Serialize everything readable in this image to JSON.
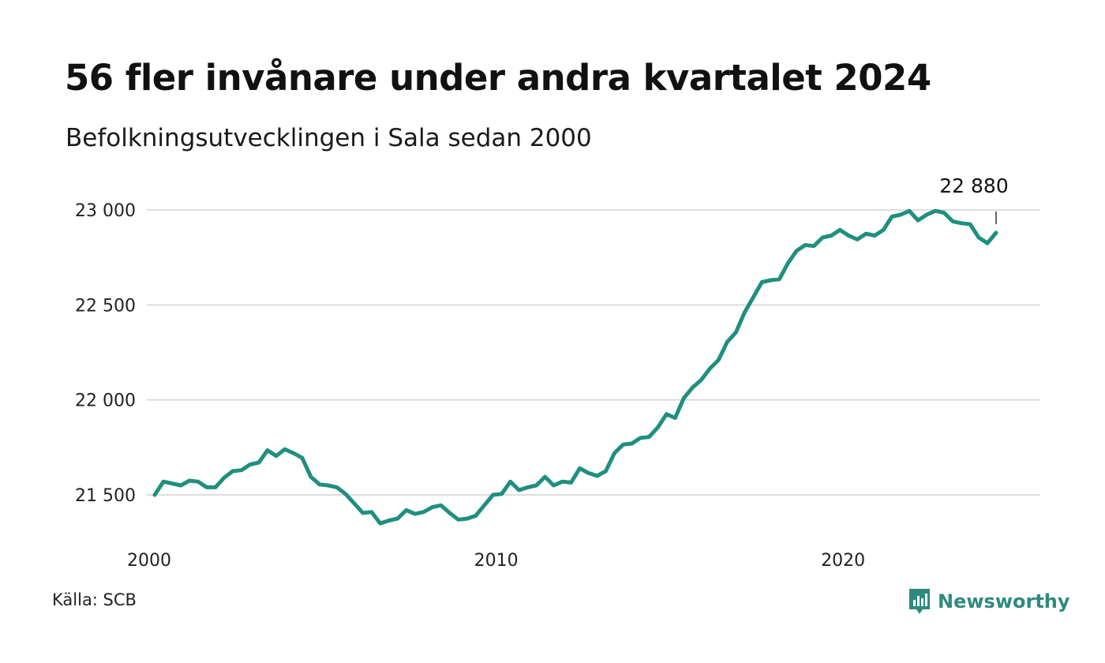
{
  "header": {
    "title": "56 fler invånare under andra kvartalet 2024",
    "subtitle": "Befolkningsutvecklingen i Sala sedan 2000"
  },
  "footer": {
    "source": "Källa: SCB",
    "brand": "Newsworthy",
    "brand_icon": "bar-chart-speech-bubble-icon"
  },
  "colors": {
    "line": "#1f8f7e",
    "grid": "#dddddd",
    "brand": "#2f8a7d"
  },
  "chart_data": {
    "type": "line",
    "title": "",
    "xlabel": "",
    "ylabel": "",
    "ylim": [
      21250,
      23100
    ],
    "xlim": [
      2000.0,
      2024.75
    ],
    "grid": "horizontal",
    "y_ticks": [
      21500,
      22000,
      22500,
      23000
    ],
    "y_tick_labels": [
      "21 500",
      "22 000",
      "22 500",
      "23 000"
    ],
    "x_ticks": [
      2000,
      2010,
      2020
    ],
    "x_tick_labels": [
      "2000",
      "2010",
      "2020"
    ],
    "annotation": {
      "label": "22 880",
      "x": 2024.25,
      "y": 22880
    },
    "series": [
      {
        "x_start": 2000.0,
        "x_step": 0.25,
        "values": [
          21500,
          21570,
          21560,
          21550,
          21575,
          21570,
          21540,
          21540,
          21590,
          21625,
          21630,
          21660,
          21670,
          21735,
          21705,
          21740,
          21720,
          21695,
          21595,
          21555,
          21550,
          21540,
          21505,
          21455,
          21405,
          21410,
          21350,
          21365,
          21375,
          21420,
          21400,
          21410,
          21435,
          21445,
          21405,
          21370,
          21375,
          21390,
          21445,
          21500,
          21505,
          21570,
          21525,
          21540,
          21550,
          21595,
          21550,
          21570,
          21565,
          21640,
          21615,
          21600,
          21625,
          21720,
          21765,
          21770,
          21800,
          21805,
          21855,
          21925,
          21905,
          22010,
          22065,
          22105,
          22165,
          22210,
          22305,
          22355,
          22460,
          22540,
          22620,
          22630,
          22635,
          22720,
          22785,
          22815,
          22810,
          22855,
          22865,
          22895,
          22865,
          22845,
          22875,
          22865,
          22895,
          22965,
          22975,
          22995,
          22945,
          22975,
          22995,
          22985,
          22940,
          22930,
          22925,
          22855,
          22825,
          22880
        ]
      }
    ]
  }
}
